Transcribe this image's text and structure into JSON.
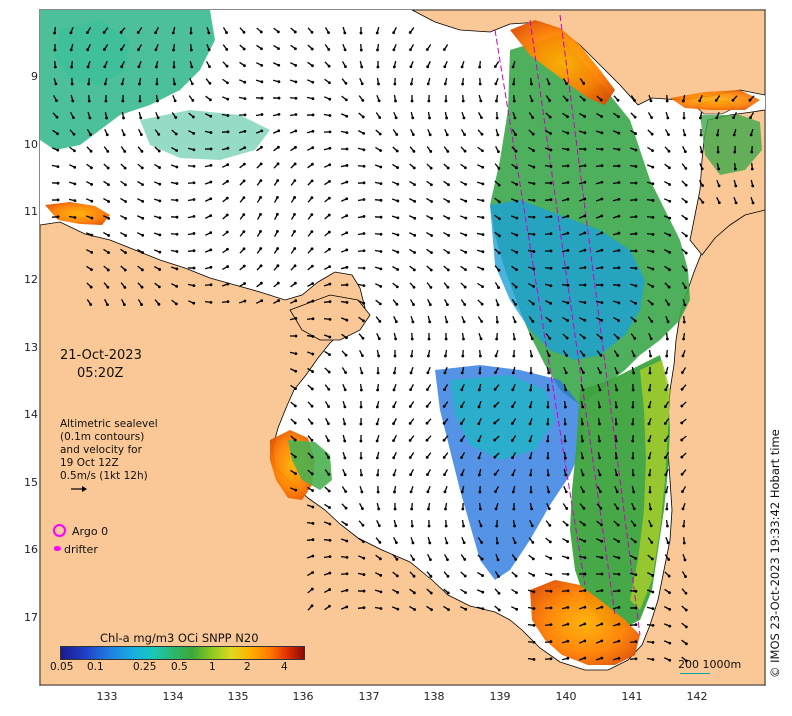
{
  "map": {
    "lat_ticks": [
      "9",
      "10",
      "11",
      "12",
      "13",
      "14",
      "15",
      "16",
      "17"
    ],
    "lon_ticks": [
      "133",
      "134",
      "135",
      "136",
      "137",
      "138",
      "139",
      "140",
      "141",
      "142"
    ],
    "land_color": "#f9c896",
    "water_color": "#ffffff"
  },
  "annotation": {
    "date": "21-Oct-2023",
    "time": "05:20Z",
    "alt_line1": "Altimetric sealevel",
    "alt_line2": "(0.1m contours)",
    "alt_line3": "and velocity for",
    "alt_line4": "19 Oct 12Z",
    "alt_line5": "0.5m/s (1kt 12h)"
  },
  "legend": {
    "argo_label": "Argo 0",
    "drifter_label": "drifter",
    "argo_color": "#ff00ff"
  },
  "colorbar": {
    "title": "Chl-a mg/m3 OCi SNPP N20",
    "ticks": [
      "0.05",
      "0.1",
      "0.25",
      "0.5",
      "1",
      "2",
      "4"
    ]
  },
  "scale": {
    "label": "200  1000m"
  },
  "copyright": "© IMOS 23-Oct-2023 19:33:42 Hobart time"
}
